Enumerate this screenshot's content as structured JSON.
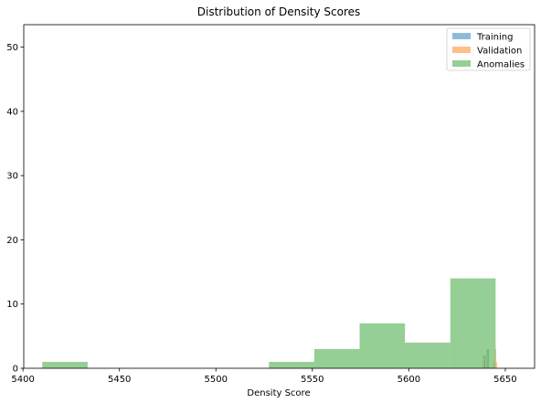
{
  "chart_data": {
    "type": "bar",
    "title": "Distribution of Density Scores",
    "xlabel": "Density Score",
    "ylabel": "",
    "xlim": [
      5400.4,
      5665.2
    ],
    "ylim": [
      0,
      53.5
    ],
    "xticks": [
      5400,
      5450,
      5500,
      5550,
      5600,
      5650
    ],
    "yticks": [
      0,
      10,
      20,
      30,
      40,
      50
    ],
    "grid": false,
    "legend_position": "top-right",
    "series": [
      {
        "name": "Training",
        "color": "#1f77b4",
        "opacity": 0.5,
        "bins": [
          {
            "x0": 5639.2,
            "x1": 5639.7,
            "count": 2
          },
          {
            "x0": 5640.9,
            "x1": 5641.3,
            "count": 3
          }
        ]
      },
      {
        "name": "Validation",
        "color": "#ff7f0e",
        "opacity": 0.5,
        "bins": [
          {
            "x0": 5638.4,
            "x1": 5638.8,
            "count": 2
          },
          {
            "x0": 5640.3,
            "x1": 5640.7,
            "count": 3
          },
          {
            "x0": 5643.9,
            "x1": 5644.3,
            "count": 1
          },
          {
            "x0": 5644.8,
            "x1": 5645.2,
            "count": 3
          },
          {
            "x0": 5645.4,
            "x1": 5645.8,
            "count": 1
          }
        ]
      },
      {
        "name": "Anomalies",
        "color": "#2ca02c",
        "opacity": 0.5,
        "bins": [
          {
            "x0": 5410.0,
            "x1": 5433.5,
            "count": 1
          },
          {
            "x0": 5433.5,
            "x1": 5457.0,
            "count": 0
          },
          {
            "x0": 5457.0,
            "x1": 5480.5,
            "count": 0
          },
          {
            "x0": 5480.5,
            "x1": 5504.0,
            "count": 0
          },
          {
            "x0": 5504.0,
            "x1": 5527.5,
            "count": 0
          },
          {
            "x0": 5527.5,
            "x1": 5551.0,
            "count": 1
          },
          {
            "x0": 5551.0,
            "x1": 5574.5,
            "count": 3
          },
          {
            "x0": 5574.5,
            "x1": 5598.0,
            "count": 7
          },
          {
            "x0": 5598.0,
            "x1": 5621.5,
            "count": 4
          },
          {
            "x0": 5621.5,
            "x1": 5645.0,
            "count": 14
          }
        ]
      }
    ]
  }
}
